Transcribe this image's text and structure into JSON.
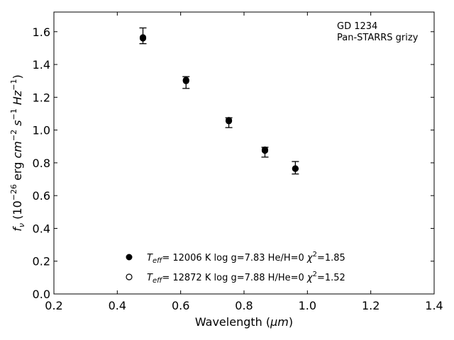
{
  "chart_data": {
    "type": "scatter",
    "xlabel_prefix": "Wavelength (",
    "xlabel_unit": "μm",
    "xlabel_suffix": ")",
    "ylabel_main": "f",
    "ylabel_sub": "ν",
    "ylabel_open": " (10",
    "ylabel_exp1": "−26",
    "ylabel_mid": " erg ",
    "ylabel_cm": "cm",
    "ylabel_exp2": "−2",
    "ylabel_s": " s",
    "ylabel_exp3": "−1",
    "ylabel_hz": " Hz",
    "ylabel_exp4": "−1",
    "ylabel_close": ")",
    "xlim": [
      0.2,
      1.4
    ],
    "ylim": [
      0.0,
      1.72
    ],
    "xticks": [
      0.2,
      0.4,
      0.6,
      0.8,
      1.0,
      1.2,
      1.4
    ],
    "xtick_labels": [
      "0.2",
      "0.4",
      "0.6",
      "0.8",
      "1.0",
      "1.2",
      "1.4"
    ],
    "yticks": [
      0.0,
      0.2,
      0.4,
      0.6,
      0.8,
      1.0,
      1.2,
      1.4,
      1.6
    ],
    "ytick_labels": [
      "0.0",
      "0.2",
      "0.4",
      "0.6",
      "0.8",
      "1.0",
      "1.2",
      "1.4",
      "1.6"
    ],
    "grid": false,
    "annotation_lines": [
      "GD 1234",
      "Pan-STARRS grizy"
    ],
    "observed": {
      "x": [
        0.481,
        0.617,
        0.752,
        0.866,
        0.962
      ],
      "y": [
        1.575,
        1.29,
        1.045,
        0.865,
        0.77
      ],
      "yerr": [
        0.048,
        0.036,
        0.03,
        0.03,
        0.038
      ]
    },
    "series": [
      {
        "marker": "filled-circle",
        "x": [
          0.481,
          0.617,
          0.752,
          0.866,
          0.962
        ],
        "y": [
          1.56,
          1.305,
          1.06,
          0.875,
          0.765
        ]
      },
      {
        "marker": "open-circle",
        "x": [
          0.481,
          0.617,
          0.752,
          0.866,
          0.962
        ],
        "y": [
          1.565,
          1.3,
          1.055,
          0.88,
          0.765
        ]
      }
    ],
    "legend": [
      {
        "marker": "filled-circle",
        "teff_sym": "T",
        "teff_sub": "eff",
        "text_main": "= 12006 K  log g=7.83  He/H=0  ",
        "chi_sym": "χ",
        "chi_exp": "2",
        "chi_val": "=1.85"
      },
      {
        "marker": "open-circle",
        "teff_sym": "T",
        "teff_sub": "eff",
        "text_main": "= 12872 K  log g=7.88  H/He=0  ",
        "chi_sym": "χ",
        "chi_exp": "2",
        "chi_val": "=1.52"
      }
    ],
    "legend_position": "bottom-center"
  }
}
